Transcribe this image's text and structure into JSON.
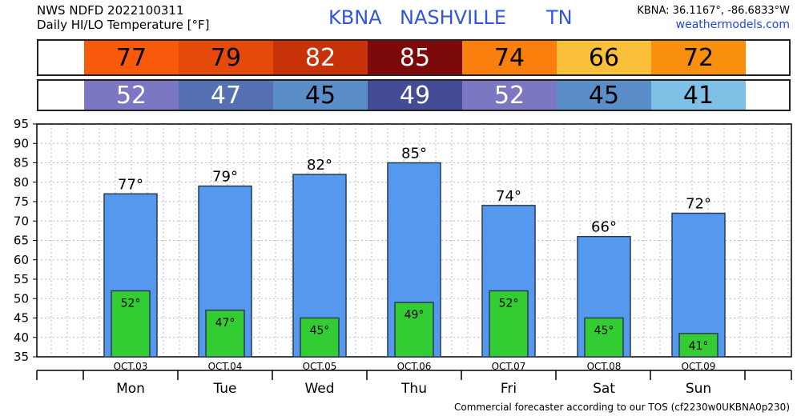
{
  "header": {
    "source_line": "NWS NDFD 2022100311",
    "product_line": "Daily HI/LO Temperature [°F]",
    "station_id": "KBNA",
    "station_city": "NASHVILLE",
    "station_state": "TN",
    "coords": "KBNA: 36.1167°, -86.6833°W",
    "site": "weathermodels.com"
  },
  "hi_band": {
    "values": [
      "77",
      "79",
      "82",
      "85",
      "74",
      "66",
      "72"
    ],
    "colors": [
      "#f85a0b",
      "#e64a0a",
      "#c73208",
      "#7d0a0a",
      "#fb7f0c",
      "#fbc03a",
      "#f98f0f"
    ],
    "text_colors": [
      "#000000",
      "#000000",
      "#ffffff",
      "#ffffff",
      "#000000",
      "#000000",
      "#000000"
    ]
  },
  "lo_band": {
    "values": [
      "52",
      "47",
      "45",
      "49",
      "52",
      "45",
      "41"
    ],
    "colors": [
      "#7b77c2",
      "#5670b4",
      "#5b8ec9",
      "#454c97",
      "#7b77c2",
      "#5b8ec9",
      "#7fc1e6"
    ],
    "text_colors": [
      "#ffffff",
      "#ffffff",
      "#000000",
      "#ffffff",
      "#ffffff",
      "#000000",
      "#000000"
    ]
  },
  "chart_data": {
    "type": "bar",
    "categories": [
      "Mon",
      "Tue",
      "Wed",
      "Thu",
      "Fri",
      "Sat",
      "Sun"
    ],
    "dates": [
      "OCT.03",
      "OCT.04",
      "OCT.05",
      "OCT.06",
      "OCT.07",
      "OCT.08",
      "OCT.09"
    ],
    "series": [
      {
        "values": [
          77,
          79,
          82,
          85,
          74,
          66,
          72
        ],
        "color": "#5599ee"
      },
      {
        "values": [
          52,
          47,
          45,
          49,
          52,
          45,
          41
        ],
        "color": "#33cc33"
      }
    ],
    "hi_labels": [
      "77°",
      "79°",
      "82°",
      "85°",
      "74°",
      "66°",
      "72°"
    ],
    "lo_labels": [
      "52°",
      "47°",
      "45°",
      "49°",
      "52°",
      "45°",
      "41°"
    ],
    "ylim": [
      35,
      95
    ],
    "yticks": [
      35,
      40,
      45,
      50,
      55,
      60,
      65,
      70,
      75,
      80,
      85,
      90,
      95
    ],
    "grid": true
  },
  "footer": {
    "note": "Commercial forecaster according to our TOS (cf2230w0UKBNA0p230)"
  }
}
